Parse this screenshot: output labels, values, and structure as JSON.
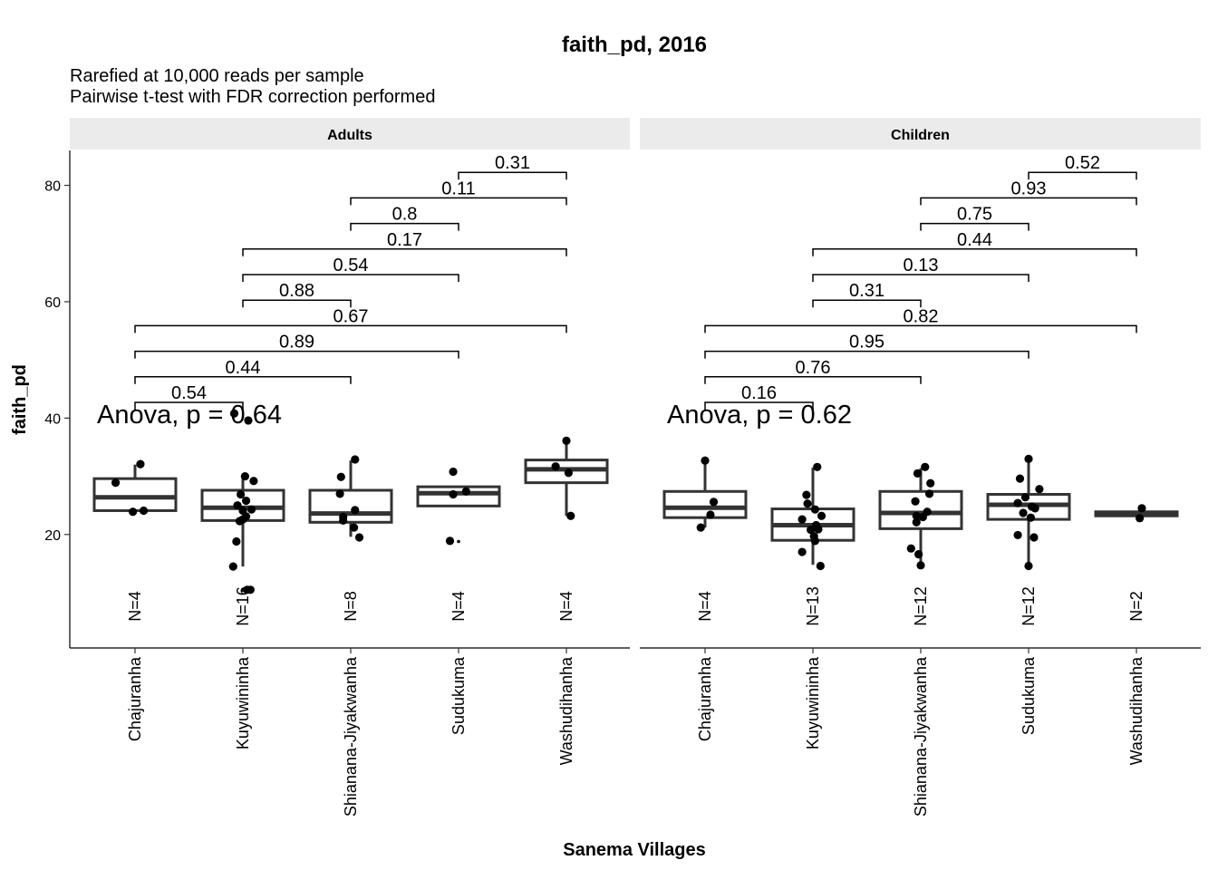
{
  "title": "faith_pd, 2016",
  "subtitle_line1": "Rarefied at 10,000 reads per sample",
  "subtitle_line2": "Pairwise t-test with FDR correction performed",
  "chart_data": {
    "type": "box",
    "xlabel": "Sanema Villages",
    "ylabel": "faith_pd",
    "ylim": [
      0.5,
      86
    ],
    "yticks": [
      20,
      40,
      60,
      80
    ],
    "grid": false,
    "categories": [
      "Chajuranha",
      "Kuyuwininha",
      "Shianana-Jiyakwanha",
      "Sudukuma",
      "Washudihanha"
    ],
    "panels": [
      {
        "name": "Adults",
        "anova": "Anova, p = 0.64",
        "boxes": [
          {
            "q1": 24.1,
            "median": 26.4,
            "q3": 29.6,
            "whisker_low": 24.1,
            "whisker_high": 32.0,
            "n_label": "N=4",
            "points": [
              [
                -0.18,
                28.9
              ],
              [
                0.05,
                32.1
              ],
              [
                -0.02,
                23.9
              ],
              [
                0.08,
                24.1
              ]
            ]
          },
          {
            "q1": 22.4,
            "median": 24.6,
            "q3": 27.6,
            "whisker_low": 14.5,
            "whisker_high": 30.0,
            "n_label": "N=16",
            "outliers": [
              10.4
            ],
            "points": [
              [
                -0.08,
                40.8
              ],
              [
                0.05,
                39.6
              ],
              [
                0.1,
                29.2
              ],
              [
                0.02,
                30.0
              ],
              [
                -0.05,
                25.0
              ],
              [
                0.03,
                25.8
              ],
              [
                -0.02,
                26.9
              ],
              [
                0.0,
                24.1
              ],
              [
                0.08,
                24.3
              ],
              [
                0.03,
                23.1
              ],
              [
                -0.03,
                22.3
              ],
              [
                0.0,
                22.6
              ],
              [
                -0.06,
                18.8
              ],
              [
                -0.09,
                14.5
              ],
              [
                0.04,
                10.5
              ],
              [
                0.07,
                10.5
              ]
            ]
          },
          {
            "q1": 22.1,
            "median": 23.6,
            "q3": 27.6,
            "whisker_low": 19.6,
            "whisker_high": 32.7,
            "n_label": "N=8",
            "points": [
              [
                -0.09,
                29.9
              ],
              [
                0.04,
                32.9
              ],
              [
                -0.1,
                27.0
              ],
              [
                0.04,
                24.2
              ],
              [
                -0.07,
                22.4
              ],
              [
                -0.07,
                23.0
              ],
              [
                0.03,
                21.2
              ],
              [
                0.08,
                19.5
              ]
            ]
          },
          {
            "q1": 24.9,
            "median": 27.1,
            "q3": 28.2,
            "whisker_low": 24.9,
            "whisker_high": 28.2,
            "n_label": "N=4",
            "outliers": [
              18.8
            ],
            "points": [
              [
                -0.05,
                30.8
              ],
              [
                0.07,
                27.4
              ],
              [
                -0.05,
                26.9
              ],
              [
                -0.08,
                18.9
              ]
            ]
          },
          {
            "q1": 28.9,
            "median": 31.2,
            "q3": 32.8,
            "whisker_low": 23.2,
            "whisker_high": 36.0,
            "n_label": "N=4",
            "points": [
              [
                -0.1,
                31.7
              ],
              [
                0.0,
                36.1
              ],
              [
                0.02,
                30.6
              ],
              [
                0.04,
                23.2
              ]
            ]
          }
        ],
        "comparisons": [
          {
            "from": 0,
            "to": 1,
            "level": 0,
            "p": "0.54"
          },
          {
            "from": 0,
            "to": 2,
            "level": 1,
            "p": "0.44"
          },
          {
            "from": 0,
            "to": 3,
            "level": 2,
            "p": "0.89"
          },
          {
            "from": 0,
            "to": 4,
            "level": 3,
            "p": "0.67"
          },
          {
            "from": 1,
            "to": 2,
            "level": 4,
            "p": "0.88"
          },
          {
            "from": 1,
            "to": 3,
            "level": 5,
            "p": "0.54"
          },
          {
            "from": 1,
            "to": 4,
            "level": 6,
            "p": "0.17"
          },
          {
            "from": 2,
            "to": 3,
            "level": 7,
            "p": "0.8"
          },
          {
            "from": 2,
            "to": 4,
            "level": 8,
            "p": "0.11"
          },
          {
            "from": 3,
            "to": 4,
            "level": 9,
            "p": "0.31"
          }
        ]
      },
      {
        "name": "Children",
        "anova": "Anova, p = 0.62",
        "boxes": [
          {
            "q1": 22.9,
            "median": 24.6,
            "q3": 27.4,
            "whisker_low": 21.2,
            "whisker_high": 32.6,
            "n_label": "N=4",
            "points": [
              [
                0.0,
                32.7
              ],
              [
                0.08,
                25.6
              ],
              [
                0.05,
                23.4
              ],
              [
                -0.04,
                21.2
              ]
            ]
          },
          {
            "q1": 19.0,
            "median": 21.6,
            "q3": 24.4,
            "whisker_low": 14.8,
            "whisker_high": 31.5,
            "n_label": "N=13",
            "points": [
              [
                0.04,
                31.6
              ],
              [
                -0.06,
                26.8
              ],
              [
                -0.05,
                25.3
              ],
              [
                0.02,
                24.3
              ],
              [
                -0.1,
                22.6
              ],
              [
                0.08,
                23.2
              ],
              [
                0.03,
                21.6
              ],
              [
                -0.02,
                20.8
              ],
              [
                0.05,
                20.9
              ],
              [
                0.01,
                19.7
              ],
              [
                0.02,
                18.9
              ],
              [
                -0.1,
                17.0
              ],
              [
                0.07,
                14.6
              ]
            ]
          },
          {
            "q1": 21.0,
            "median": 23.7,
            "q3": 27.4,
            "whisker_low": 14.7,
            "whisker_high": 31.4,
            "n_label": "N=12",
            "points": [
              [
                -0.03,
                30.5
              ],
              [
                0.04,
                31.6
              ],
              [
                0.09,
                28.8
              ],
              [
                0.08,
                27.0
              ],
              [
                -0.05,
                25.7
              ],
              [
                0.06,
                23.9
              ],
              [
                -0.04,
                23.2
              ],
              [
                -0.04,
                22.1
              ],
              [
                -0.09,
                17.6
              ],
              [
                -0.02,
                16.6
              ],
              [
                0.0,
                14.7
              ],
              [
                0.02,
                23.0
              ]
            ]
          },
          {
            "q1": 22.6,
            "median": 25.1,
            "q3": 26.9,
            "whisker_low": 14.6,
            "whisker_high": 33.0,
            "n_label": "N=12",
            "points": [
              [
                0.0,
                33.0
              ],
              [
                -0.08,
                29.6
              ],
              [
                0.1,
                27.8
              ],
              [
                -0.03,
                26.4
              ],
              [
                -0.1,
                25.4
              ],
              [
                0.03,
                24.8
              ],
              [
                -0.05,
                23.7
              ],
              [
                0.02,
                22.9
              ],
              [
                -0.1,
                19.9
              ],
              [
                0.05,
                19.5
              ],
              [
                0.0,
                14.6
              ],
              [
                0.06,
                24.5
              ]
            ]
          },
          {
            "q1": 23.2,
            "median": 23.6,
            "q3": 23.9,
            "whisker_low": 23.2,
            "whisker_high": 23.9,
            "n_label": "N=2",
            "points": [
              [
                0.05,
                24.5
              ],
              [
                0.03,
                22.8
              ]
            ]
          }
        ],
        "comparisons": [
          {
            "from": 0,
            "to": 1,
            "level": 0,
            "p": "0.16"
          },
          {
            "from": 0,
            "to": 2,
            "level": 1,
            "p": "0.76"
          },
          {
            "from": 0,
            "to": 3,
            "level": 2,
            "p": "0.95"
          },
          {
            "from": 0,
            "to": 4,
            "level": 3,
            "p": "0.82"
          },
          {
            "from": 1,
            "to": 2,
            "level": 4,
            "p": "0.31"
          },
          {
            "from": 1,
            "to": 3,
            "level": 5,
            "p": "0.13"
          },
          {
            "from": 1,
            "to": 4,
            "level": 6,
            "p": "0.44"
          },
          {
            "from": 2,
            "to": 3,
            "level": 7,
            "p": "0.75"
          },
          {
            "from": 2,
            "to": 4,
            "level": 8,
            "p": "0.93"
          },
          {
            "from": 3,
            "to": 4,
            "level": 9,
            "p": "0.52"
          }
        ]
      }
    ]
  }
}
